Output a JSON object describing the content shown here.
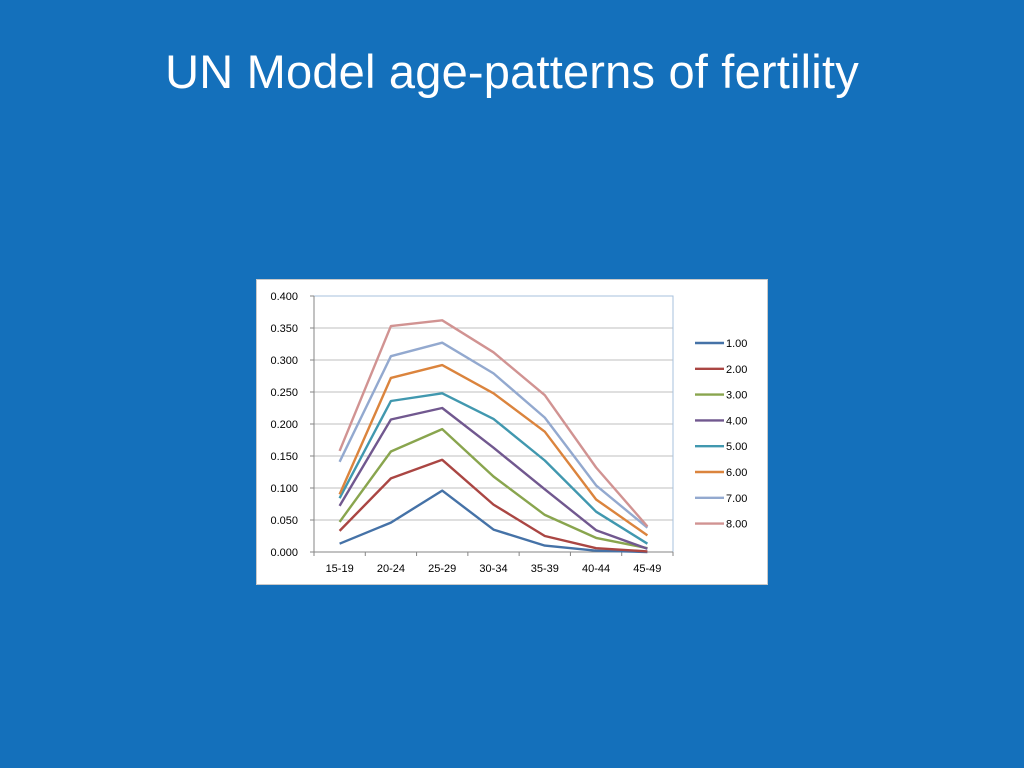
{
  "slide": {
    "title": "UN Model age-patterns of fertility"
  },
  "chart_data": {
    "type": "line",
    "title": "",
    "xlabel": "",
    "ylabel": "",
    "categories": [
      "15-19",
      "20-24",
      "25-29",
      "30-34",
      "35-39",
      "40-44",
      "45-49"
    ],
    "ylim": [
      0,
      0.4
    ],
    "yticks": [
      "0.000",
      "0.050",
      "0.100",
      "0.150",
      "0.200",
      "0.250",
      "0.300",
      "0.350",
      "0.400"
    ],
    "grid": true,
    "legend_position": "right",
    "series": [
      {
        "name": "1.00",
        "color": "#4572A7",
        "values": [
          0.013,
          0.046,
          0.096,
          0.035,
          0.01,
          0.002,
          0.0
        ]
      },
      {
        "name": "2.00",
        "color": "#AA4643",
        "values": [
          0.033,
          0.115,
          0.144,
          0.074,
          0.025,
          0.006,
          0.001
        ]
      },
      {
        "name": "3.00",
        "color": "#89A54E",
        "values": [
          0.047,
          0.157,
          0.192,
          0.118,
          0.058,
          0.022,
          0.006
        ]
      },
      {
        "name": "4.00",
        "color": "#71588F",
        "values": [
          0.072,
          0.207,
          0.225,
          0.163,
          0.098,
          0.034,
          0.005
        ]
      },
      {
        "name": "5.00",
        "color": "#4198AF",
        "values": [
          0.084,
          0.236,
          0.248,
          0.208,
          0.143,
          0.063,
          0.013
        ]
      },
      {
        "name": "6.00",
        "color": "#DB843D",
        "values": [
          0.09,
          0.272,
          0.292,
          0.248,
          0.188,
          0.082,
          0.026
        ]
      },
      {
        "name": "7.00",
        "color": "#93A9CF",
        "values": [
          0.141,
          0.306,
          0.327,
          0.279,
          0.21,
          0.104,
          0.038
        ]
      },
      {
        "name": "8.00",
        "color": "#D19392",
        "values": [
          0.158,
          0.353,
          0.362,
          0.312,
          0.245,
          0.132,
          0.04
        ]
      }
    ]
  }
}
